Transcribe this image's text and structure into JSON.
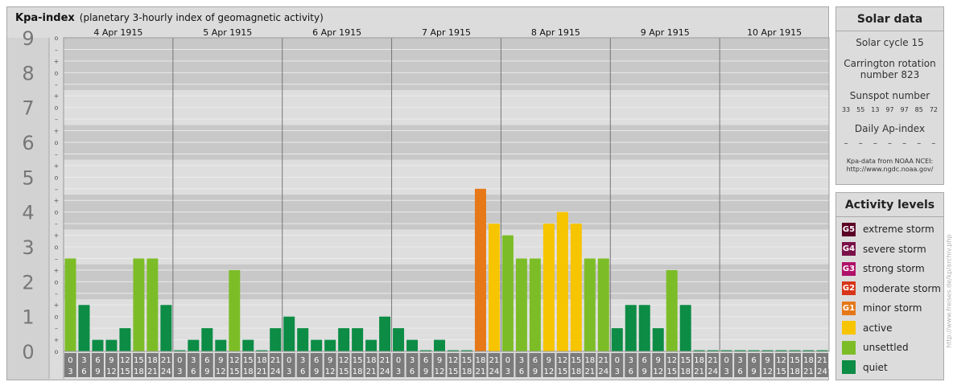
{
  "main": {
    "title": "Kpa-index",
    "subtitle": "(planetary 3-hourly index of geomagnetic activity)"
  },
  "colors": {
    "extreme": "#5a0024",
    "severe": "#7a1048",
    "strong": "#b0106a",
    "moderate": "#d83418",
    "minor": "#e67817",
    "active": "#f7c400",
    "unsettled": "#7cbd27",
    "quiet": "#0c8c45"
  },
  "chart_data": {
    "type": "bar",
    "ylim": [
      0,
      9
    ],
    "y_ticks": [
      "0",
      "1",
      "2",
      "3",
      "4",
      "5",
      "6",
      "7",
      "8",
      "9"
    ],
    "sub_ticks": [
      "o",
      "+",
      "–"
    ],
    "days": [
      "4 Apr 1915",
      "5 Apr 1915",
      "6 Apr 1915",
      "7 Apr 1915",
      "8 Apr 1915",
      "9 Apr 1915",
      "10 Apr 1915"
    ],
    "interval_start": [
      "0",
      "3",
      "6",
      "9",
      "12",
      "15",
      "18",
      "21"
    ],
    "interval_end": [
      "3",
      "6",
      "9",
      "12",
      "15",
      "18",
      "21",
      "24"
    ],
    "values": [
      2.667,
      1.333,
      0.333,
      0.333,
      0.667,
      2.667,
      2.667,
      1.333,
      0,
      0.333,
      0.667,
      0.333,
      2.333,
      0.333,
      0,
      0.667,
      1,
      0.667,
      0.333,
      0.333,
      0.667,
      0.667,
      0.333,
      1,
      0.667,
      0.333,
      0,
      0.333,
      0,
      0,
      4.667,
      3.667,
      3.333,
      2.667,
      2.667,
      3.667,
      4,
      3.667,
      2.667,
      2.667,
      0.667,
      1.333,
      1.333,
      0.667,
      2.333,
      1.333,
      0,
      0,
      0,
      0,
      0,
      0,
      0,
      0,
      0,
      0
    ]
  },
  "solar": {
    "title": "Solar data",
    "cycle": "Solar cycle 15",
    "carrington_line1": "Carrington rotation",
    "carrington_line2": "number 823",
    "sunspot_label": "Sunspot number",
    "sunspots": [
      "33",
      "55",
      "13",
      "97",
      "97",
      "85",
      "72"
    ],
    "ap_label": "Daily Ap-index",
    "ap_values": [
      "–",
      "–",
      "–",
      "–",
      "–",
      "–",
      "–"
    ],
    "note_line1": "Kpa-data from NOAA NCEI:",
    "note_line2": "http://www.ngdc.noaa.gov/"
  },
  "activity": {
    "title": "Activity levels",
    "items": [
      {
        "code": "G5",
        "label": "extreme storm",
        "color": "#5a0024"
      },
      {
        "code": "G4",
        "label": "severe storm",
        "color": "#7a1048"
      },
      {
        "code": "G3",
        "label": "strong storm",
        "color": "#b0106a"
      },
      {
        "code": "G2",
        "label": "moderate storm",
        "color": "#d83418"
      },
      {
        "code": "G1",
        "label": "minor storm",
        "color": "#e67817"
      },
      {
        "code": "",
        "label": "active",
        "color": "#f7c400"
      },
      {
        "code": "",
        "label": "unsettled",
        "color": "#7cbd27"
      },
      {
        "code": "",
        "label": "quiet",
        "color": "#0c8c45"
      }
    ]
  },
  "watermark": "http://www.freises.de/kp/archiv.php"
}
